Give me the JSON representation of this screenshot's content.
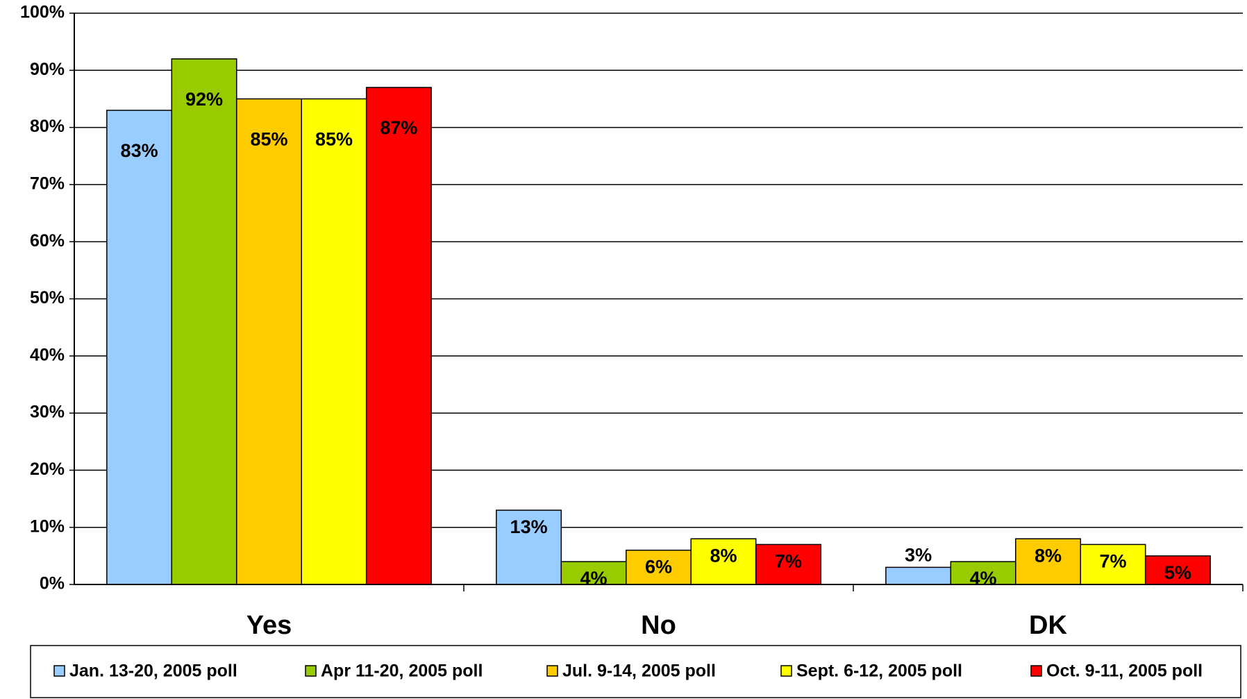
{
  "chart_data": {
    "type": "bar",
    "categories": [
      "Yes",
      "No",
      "DK"
    ],
    "series": [
      {
        "name": "Jan. 13-20, 2005 poll",
        "color": "#99ccff",
        "values": [
          83,
          13,
          3
        ],
        "value_labels": [
          "83%",
          "13%",
          "3%"
        ]
      },
      {
        "name": "Apr 11-20, 2005 poll",
        "color": "#99cc00",
        "values": [
          92,
          4,
          4
        ],
        "value_labels": [
          "92%",
          "4%",
          "4%"
        ]
      },
      {
        "name": "Jul. 9-14, 2005 poll",
        "color": "#ffcc00",
        "values": [
          85,
          6,
          8
        ],
        "value_labels": [
          "85%",
          "6%",
          "8%"
        ]
      },
      {
        "name": "Sept. 6-12, 2005 poll",
        "color": "#ffff00",
        "values": [
          85,
          8,
          7
        ],
        "value_labels": [
          "85%",
          "8%",
          "7%"
        ]
      },
      {
        "name": "Oct. 9-11, 2005 poll",
        "color": "#ff0000",
        "values": [
          87,
          7,
          5
        ],
        "value_labels": [
          "87%",
          "7%",
          "5%"
        ]
      }
    ],
    "ylim": [
      0,
      100
    ],
    "yticks": [
      {
        "value": 0,
        "label": "0%"
      },
      {
        "value": 10,
        "label": "10%"
      },
      {
        "value": 20,
        "label": "20%"
      },
      {
        "value": 30,
        "label": "30%"
      },
      {
        "value": 40,
        "label": "40%"
      },
      {
        "value": 50,
        "label": "50%"
      },
      {
        "value": 60,
        "label": "60%"
      },
      {
        "value": 70,
        "label": "70%"
      },
      {
        "value": 80,
        "label": "80%"
      },
      {
        "value": 90,
        "label": "90%"
      },
      {
        "value": 100,
        "label": "100%"
      }
    ],
    "grid": true,
    "legend": "bottom"
  }
}
